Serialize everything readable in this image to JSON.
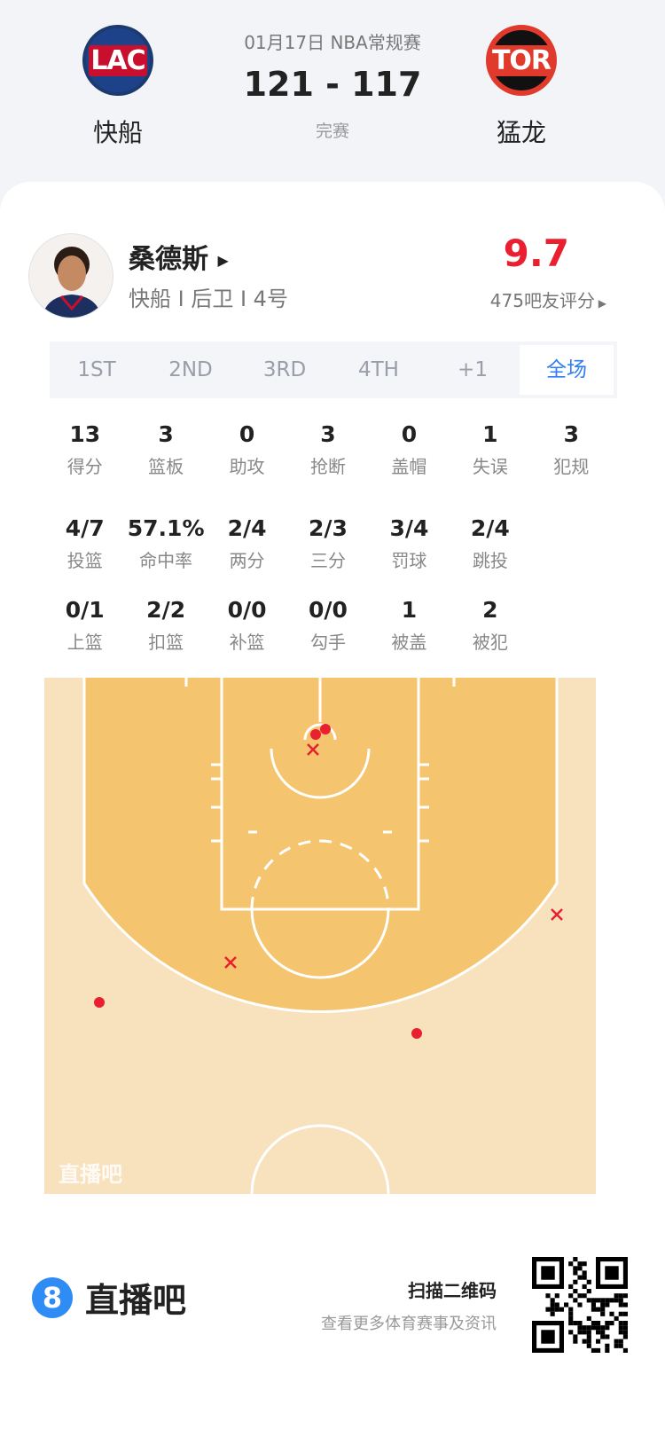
{
  "match": {
    "date_league": "01月17日 NBA常规赛",
    "score": "121 - 117",
    "status": "完赛",
    "home": {
      "abbr": "LAC",
      "name": "快船",
      "color": "#1d428a"
    },
    "away": {
      "abbr": "TOR",
      "name": "猛龙",
      "color": "#ce1141"
    }
  },
  "player": {
    "name": "桑德斯",
    "info": "快船 I 后卫 I 4号",
    "rating": "9.7",
    "rating_count": "475吧友评分"
  },
  "tabs": [
    {
      "label": "1ST"
    },
    {
      "label": "2ND"
    },
    {
      "label": "3RD"
    },
    {
      "label": "4TH"
    },
    {
      "label": "+1"
    },
    {
      "label": "全场",
      "active": true
    }
  ],
  "stats_rows": [
    [
      {
        "v": "13",
        "l": "得分"
      },
      {
        "v": "3",
        "l": "篮板"
      },
      {
        "v": "0",
        "l": "助攻"
      },
      {
        "v": "3",
        "l": "抢断"
      },
      {
        "v": "0",
        "l": "盖帽"
      },
      {
        "v": "1",
        "l": "失误"
      },
      {
        "v": "3",
        "l": "犯规"
      }
    ],
    [
      {
        "v": "4/7",
        "l": "投篮"
      },
      {
        "v": "57.1%",
        "l": "命中率"
      },
      {
        "v": "2/4",
        "l": "两分"
      },
      {
        "v": "2/3",
        "l": "三分"
      },
      {
        "v": "3/4",
        "l": "罚球"
      },
      {
        "v": "2/4",
        "l": "跳投"
      }
    ],
    [
      {
        "v": "0/1",
        "l": "上篮"
      },
      {
        "v": "2/2",
        "l": "扣篮"
      },
      {
        "v": "0/0",
        "l": "补篮"
      },
      {
        "v": "0/0",
        "l": "勾手"
      },
      {
        "v": "1",
        "l": "被盖"
      },
      {
        "v": "2",
        "l": "被犯"
      }
    ]
  ],
  "shot_chart": {
    "watermark": "直播吧",
    "colors": {
      "made": "#e8202f",
      "missed": "#e8202f",
      "court_inside": "#f4c46e",
      "court_outside": "#f8e2bd"
    },
    "shots": [
      {
        "result": "made"
      },
      {
        "result": "made"
      },
      {
        "result": "made"
      },
      {
        "result": "made"
      },
      {
        "result": "missed"
      },
      {
        "result": "missed"
      },
      {
        "result": "missed"
      }
    ]
  },
  "footer": {
    "brand": "直播吧",
    "brand_icon": "8",
    "scan_title": "扫描二维码",
    "scan_sub": "查看更多体育赛事及资讯"
  }
}
